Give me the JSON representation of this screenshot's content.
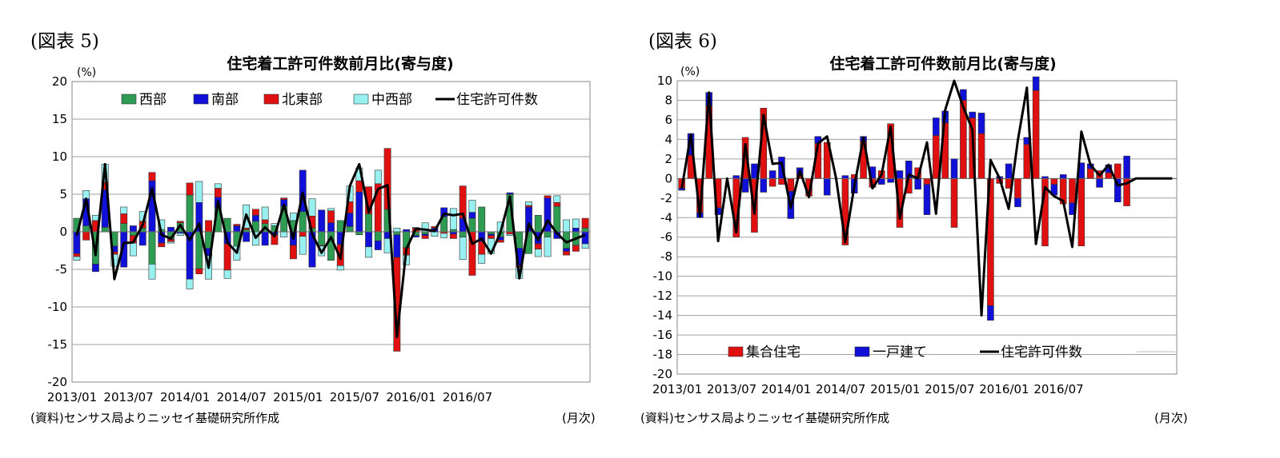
{
  "figures": [
    {
      "label": "(図表 5)",
      "source": "(資料)センサス局よりニッセイ基礎研究所作成",
      "unit_x": "(月次)",
      "chart_data": {
        "type": "bar",
        "stacked": true,
        "title": "住宅着工許可件数前月比(寄与度)",
        "ylabel": "(%)",
        "ylim": [
          -20,
          20
        ],
        "yticks": [
          20,
          15,
          10,
          5,
          0,
          -5,
          -10,
          -15,
          -20
        ],
        "xtick_labels": [
          "2013/01",
          "2013/07",
          "2014/01",
          "2014/07",
          "2015/01",
          "2015/07",
          "2016/01",
          "2016/07"
        ],
        "grid": true,
        "legend_position": "top",
        "series": [
          {
            "name": "西部",
            "color": "#2e9b52",
            "kind": "bar",
            "values": [
              1.8,
              0.8,
              -4.3,
              0.6,
              -1.9,
              1.1,
              -0.5,
              0.5,
              -4.3,
              0.3,
              -1.0,
              1.2,
              4.9,
              -4.9,
              -2.2,
              3.2,
              1.8,
              -1.9,
              0.3,
              1.4,
              1.1,
              0.8,
              3.4,
              1.5,
              2.7,
              0.5,
              -1.8,
              -3.8,
              1.5,
              0.7,
              -0.4,
              2.4,
              -1.2,
              3.0,
              -0.4,
              -2.1,
              -0.5,
              -0.3,
              0.0,
              2.0,
              0.3,
              -0.7,
              1.8,
              3.3,
              -0.3,
              -0.7,
              5.0,
              -2.2,
              -2.9,
              2.2,
              -0.7,
              3.4,
              -2.2,
              -1.8,
              0.5
            ]
          },
          {
            "name": "南部",
            "color": "#1010d8",
            "kind": "bar",
            "values": [
              -2.9,
              3.6,
              -1.0,
              5.0,
              -0.8,
              -4.7,
              0.8,
              -1.8,
              6.8,
              -1.5,
              0.6,
              -0.2,
              -6.3,
              3.9,
              -1.0,
              1.4,
              -1.6,
              0.8,
              -1.3,
              0.8,
              -1.8,
              -0.4,
              0.9,
              -1.8,
              5.5,
              -4.7,
              2.9,
              1.2,
              -1.7,
              1.8,
              5.3,
              -2.0,
              -1.2,
              -0.9,
              -3.0,
              0.3,
              -0.2,
              -0.2,
              0.5,
              1.2,
              -0.3,
              1.8,
              0.8,
              -1.3,
              -0.2,
              -0.4,
              0.2,
              -2.3,
              3.3,
              -1.6,
              4.5,
              -0.9,
              -0.4,
              0.5,
              -1.6
            ]
          },
          {
            "name": "北東部",
            "color": "#e01010",
            "kind": "bar",
            "values": [
              -0.4,
              -1.1,
              1.5,
              1.0,
              -0.3,
              1.3,
              -1.0,
              0.9,
              1.1,
              -0.5,
              -0.3,
              0.2,
              1.6,
              -0.7,
              1.5,
              1.2,
              -3.5,
              0.2,
              0.2,
              0.8,
              0.5,
              -1.3,
              0.2,
              -1.8,
              -0.6,
              1.6,
              -0.1,
              1.6,
              -2.8,
              1.5,
              1.5,
              3.6,
              6.4,
              8.1,
              -12.5,
              -1.0,
              0.5,
              -0.4,
              0.2,
              -0.2,
              -0.6,
              4.3,
              -5.8,
              -1.7,
              -0.4,
              -0.3,
              -0.3,
              -0.2,
              0.2,
              -0.7,
              0.3,
              0.5,
              -0.5,
              -0.8,
              1.3
            ]
          },
          {
            "name": "中西部",
            "color": "#99f0f0",
            "kind": "bar",
            "values": [
              -0.5,
              1.1,
              0.7,
              2.4,
              -1.6,
              0.9,
              -1.7,
              1.3,
              -2.0,
              1.3,
              -0.2,
              -0.3,
              -1.3,
              2.8,
              -3.1,
              0.6,
              -1.1,
              -1.9,
              3.1,
              -1.8,
              1.7,
              0.3,
              -0.7,
              1.0,
              -2.4,
              2.3,
              -1.3,
              0.3,
              -0.6,
              2.1,
              1.7,
              -1.4,
              1.8,
              -1.9,
              0.5,
              -1.3,
              0.1,
              1.2,
              -0.6,
              -0.6,
              2.8,
              -3.0,
              1.6,
              -1.2,
              -2.0,
              1.3,
              -0.2,
              -1.5,
              0.5,
              -1.0,
              -2.6,
              0.9,
              1.6,
              1.2,
              -0.6
            ]
          },
          {
            "name": "住宅許可件数",
            "color": "#000000",
            "kind": "line",
            "values": [
              -0.5,
              4.4,
              -3.1,
              9.0,
              -6.3,
              -1.5,
              -1.4,
              0.9,
              5.8,
              -0.4,
              -0.9,
              0.9,
              -1.1,
              1.1,
              -4.8,
              4.1,
              -1.4,
              -2.8,
              2.3,
              -0.8,
              0.6,
              -0.6,
              3.6,
              -0.9,
              5.2,
              -0.3,
              -2.8,
              -0.7,
              -3.6,
              6.1,
              9.0,
              2.6,
              5.7,
              6.2,
              -14.0,
              -2.3,
              0.4,
              0.3,
              0.1,
              2.4,
              2.2,
              2.4,
              -1.6,
              -0.9,
              -2.9,
              -0.1,
              4.7,
              -6.2,
              1.1,
              -1.1,
              1.5,
              -0.2,
              -1.4,
              -0.9,
              -0.4
            ]
          }
        ]
      }
    },
    {
      "label": "(図表 6)",
      "source": "(資料)センサス局よりニッセイ基礎研究所作成",
      "unit_x": "(月次)",
      "chart_data": {
        "type": "bar",
        "stacked": true,
        "title": "住宅着工許可件数前月比(寄与度)",
        "ylabel": "(%)",
        "ylim": [
          -20,
          10
        ],
        "yticks": [
          10,
          8,
          6,
          4,
          2,
          0,
          -2,
          -4,
          -6,
          -8,
          -10,
          -12,
          -14,
          -16,
          -18,
          -20
        ],
        "xtick_labels": [
          "2013/01",
          "2013/07",
          "2014/01",
          "2014/07",
          "2015/01",
          "2015/07",
          "2016/01",
          "2016/07"
        ],
        "grid": true,
        "legend_position": "bottom",
        "series": [
          {
            "name": "集合住宅",
            "color": "#e01010",
            "kind": "bar",
            "values": [
              -1.0,
              2.4,
              -3.5,
              7.4,
              -3.0,
              0.0,
              -6.0,
              4.2,
              -5.5,
              7.2,
              -0.8,
              -0.6,
              -1.3,
              0.4,
              -1.8,
              3.6,
              3.7,
              0.0,
              -6.8,
              0.4,
              3.8,
              -0.9,
              0.8,
              5.6,
              -5.0,
              -1.5,
              1.1,
              -0.6,
              4.4,
              5.7,
              -5.0,
              8.0,
              6.2,
              4.6,
              -13.0,
              -0.5,
              -1.0,
              -2.0,
              3.5,
              9.0,
              -6.9,
              -0.6,
              -2.6,
              -2.5,
              -6.9,
              1.0,
              0.8,
              0.6,
              1.5,
              -2.8,
              0.0,
              0.0,
              0.0,
              0.0,
              0.0
            ]
          },
          {
            "name": "一戸建て",
            "color": "#1010d8",
            "kind": "bar",
            "values": [
              -0.2,
              2.2,
              -0.5,
              1.4,
              -0.7,
              0.0,
              0.3,
              -1.4,
              1.5,
              -1.4,
              0.8,
              2.2,
              -2.8,
              0.7,
              0.0,
              0.7,
              -1.7,
              0.0,
              0.3,
              -1.5,
              0.5,
              1.2,
              -0.6,
              -0.4,
              0.8,
              1.8,
              -1.1,
              -3.1,
              1.8,
              1.2,
              2.0,
              1.1,
              0.6,
              2.1,
              -1.5,
              0.2,
              1.5,
              -0.9,
              0.7,
              1.4,
              0.2,
              -1.1,
              0.4,
              -1.2,
              1.6,
              0.5,
              -0.9,
              0.8,
              -2.4,
              2.3,
              0.0,
              0.0,
              0.0,
              0.0,
              0.0
            ]
          },
          {
            "name": "住宅許可件数",
            "color": "#000000",
            "kind": "line",
            "values": [
              -1.0,
              4.5,
              -3.9,
              8.8,
              -6.4,
              0.0,
              -5.5,
              3.5,
              -3.6,
              6.5,
              1.5,
              1.6,
              -3.0,
              0.8,
              -1.9,
              3.6,
              4.3,
              0.0,
              -6.5,
              -0.8,
              4.2,
              -1.0,
              0.4,
              5.3,
              -4.1,
              0.4,
              0.0,
              3.7,
              -3.6,
              7.0,
              10.0,
              7.3,
              5.0,
              -14.0,
              1.9,
              0.0,
              -3.1,
              3.9,
              9.3,
              -6.7,
              -0.9,
              -1.8,
              -2.3,
              -7.0,
              4.8,
              1.4,
              0.3,
              1.4,
              -0.7,
              -0.5,
              0.0,
              0.0,
              0.0,
              0.0,
              0.0
            ]
          }
        ]
      }
    }
  ]
}
